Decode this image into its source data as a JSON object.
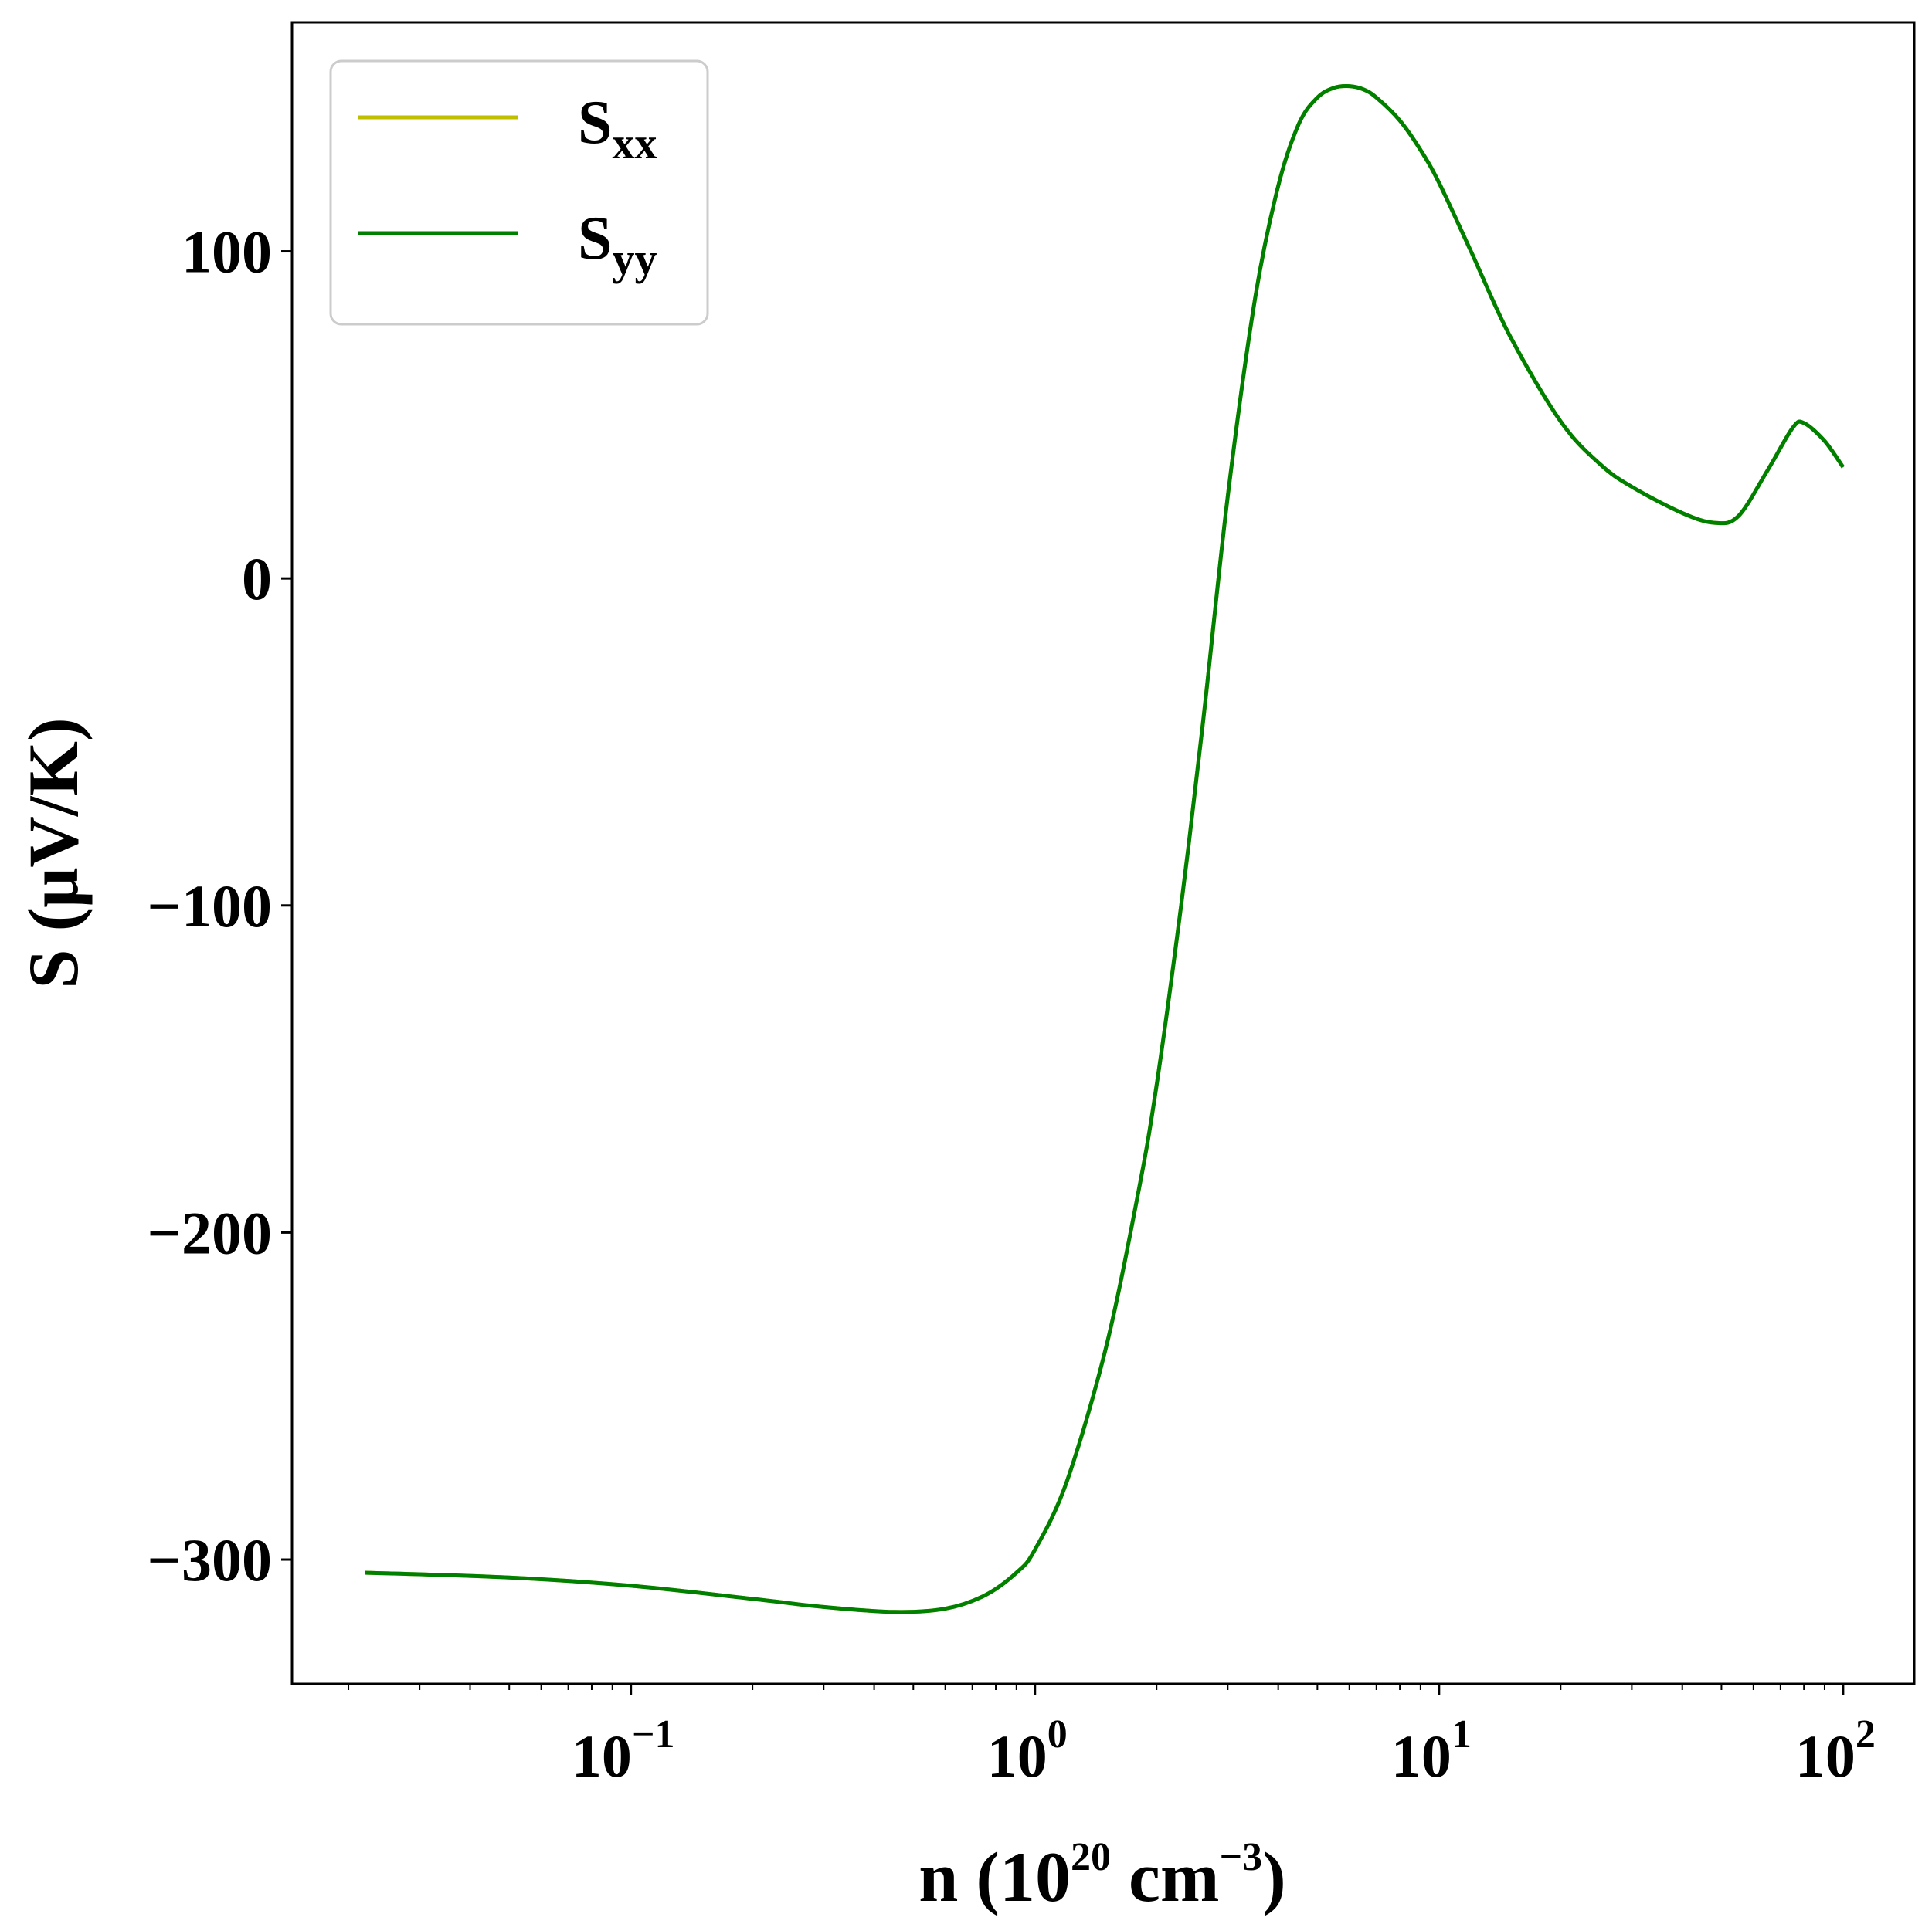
{
  "chart_data": {
    "type": "line",
    "x_scale": "log",
    "xlim": [
      0.0145,
      150
    ],
    "ylim": [
      -338,
      170
    ],
    "xlabel": {
      "main": "n (10",
      "exp1": "20",
      "mid": " cm",
      "exp2": "−3",
      "end": ")"
    },
    "ylabel": "S (μV/K)",
    "x_ticks": [
      {
        "value": 0.1,
        "base": "10",
        "exp": "−1"
      },
      {
        "value": 1,
        "base": "10",
        "exp": "0"
      },
      {
        "value": 10,
        "base": "10",
        "exp": "1"
      },
      {
        "value": 100,
        "base": "10",
        "exp": "2"
      }
    ],
    "y_ticks": [
      {
        "value": 100,
        "label": "100"
      },
      {
        "value": 0,
        "label": "0"
      },
      {
        "value": -100,
        "label": "−100"
      },
      {
        "value": -200,
        "label": "−200"
      },
      {
        "value": -300,
        "label": "−300"
      }
    ],
    "grid": false,
    "legend_position": "upper-left",
    "series": [
      {
        "name": "S",
        "name_sub": "xx",
        "color": "#bfbf00",
        "x": [
          0.022,
          0.05,
          0.1,
          0.2,
          0.3,
          0.45,
          0.6,
          0.75,
          0.9,
          1.0,
          1.2,
          1.5,
          1.8,
          2.0,
          2.3,
          2.6,
          3.0,
          3.5,
          4.0,
          4.5,
          5.0,
          5.5,
          6.0,
          6.5,
          7.0,
          8.0,
          9.0,
          10.0,
          12.0,
          15.0,
          20.0,
          25.0,
          30.0,
          40.0,
          48.0,
          55.0,
          65.0,
          75.0,
          80.0,
          90.0,
          100.0
        ],
        "y": [
          -304,
          -305.5,
          -308,
          -312,
          -314.5,
          -316,
          -315,
          -311,
          -304,
          -297,
          -276,
          -235,
          -188,
          -155,
          -100,
          -45,
          25,
          85,
          120,
          139,
          147,
          150,
          150.5,
          149.5,
          147,
          140,
          131,
          121,
          100,
          74,
          48,
          35,
          28,
          20,
          17,
          19,
          33,
          46,
          47.5,
          42,
          34
        ]
      },
      {
        "name": "S",
        "name_sub": "yy",
        "color": "#008000",
        "x": [
          0.022,
          0.05,
          0.1,
          0.2,
          0.3,
          0.45,
          0.6,
          0.75,
          0.9,
          1.0,
          1.2,
          1.5,
          1.8,
          2.0,
          2.3,
          2.6,
          3.0,
          3.5,
          4.0,
          4.5,
          5.0,
          5.5,
          6.0,
          6.5,
          7.0,
          8.0,
          9.0,
          10.0,
          12.0,
          15.0,
          20.0,
          25.0,
          30.0,
          40.0,
          48.0,
          55.0,
          65.0,
          75.0,
          80.0,
          90.0,
          100.0
        ],
        "y": [
          -304,
          -305.5,
          -308,
          -312,
          -314.5,
          -316,
          -315,
          -311,
          -304,
          -297,
          -276,
          -235,
          -188,
          -155,
          -100,
          -45,
          25,
          85,
          120,
          139,
          147,
          150,
          150.5,
          149.5,
          147,
          140,
          131,
          121,
          100,
          74,
          48,
          35,
          28,
          20,
          17,
          19,
          33,
          46,
          47.5,
          42,
          34
        ]
      }
    ]
  }
}
